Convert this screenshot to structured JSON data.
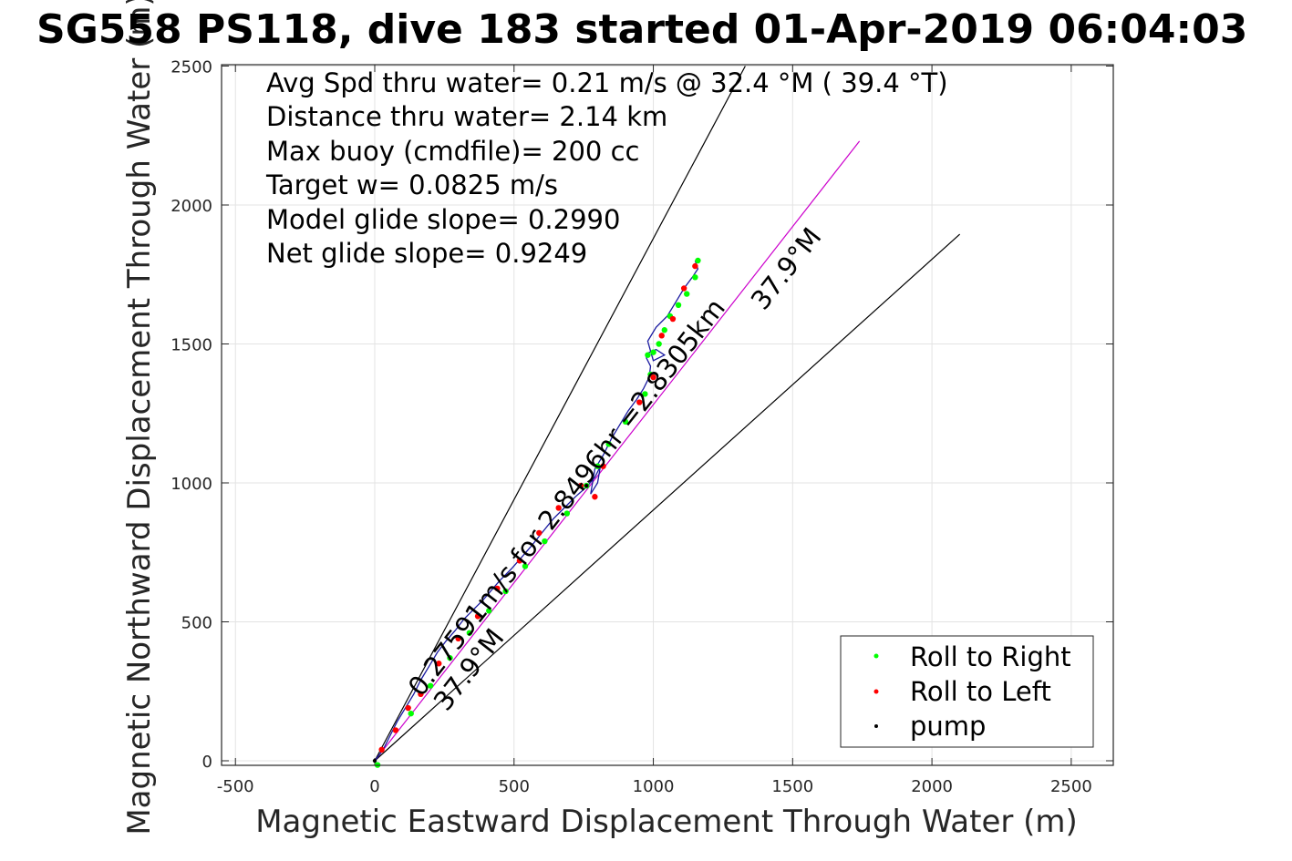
{
  "chart_data": {
    "type": "line",
    "title": "SG558 PS118, dive 183 started 01-Apr-2019 06:04:03",
    "xlabel": "Magnetic Eastward Displacement Through Water (m)",
    "ylabel": "Magnetic Northward Displacement Through Water (m)",
    "xlim": [
      -550,
      2650
    ],
    "ylim": [
      -20,
      2500
    ],
    "xticks": [
      -500,
      0,
      500,
      1000,
      1500,
      2000,
      2500
    ],
    "yticks": [
      0,
      500,
      1000,
      1500,
      2000,
      2500
    ],
    "grid": true,
    "stats_text": [
      "Avg Spd thru water=  0.21 m/s @  32.4 °M ( 39.4 °T)",
      "Distance thru water=  2.14 km",
      "Max buoy (cmdfile)= 200 cc",
      "Target w= 0.0825 m/s",
      "Model glide slope= 0.2990",
      "Net glide slope= 0.9249"
    ],
    "annotations": [
      "0.27591m/s for 2.8496hr =2.8305km",
      "37.9°M",
      "37.9°M"
    ],
    "legend_position": "bottom-right",
    "legend": [
      {
        "label": "Roll to Right",
        "color": "#00ff00"
      },
      {
        "label": "Roll to Left",
        "color": "#ff0000"
      },
      {
        "label": "pump",
        "color": "#000000"
      }
    ],
    "reference_lines": [
      {
        "color": "#000000",
        "x": [
          0,
          1330
        ],
        "y": [
          0,
          2500
        ]
      },
      {
        "color": "#000000",
        "x": [
          0,
          2100
        ],
        "y": [
          0,
          1895
        ]
      },
      {
        "color": "#cc00cc",
        "x": [
          0,
          1740
        ],
        "y": [
          0,
          2230
        ]
      }
    ],
    "series": [
      {
        "color": "#1a1aa0",
        "x": [
          0,
          30,
          55,
          80,
          110,
          140,
          165,
          195,
          225,
          255,
          290,
          320,
          355,
          390,
          420,
          450,
          490,
          525,
          560,
          600,
          640,
          680,
          720,
          760,
          790,
          810,
          800,
          775,
          790,
          820,
          850,
          880,
          910,
          940,
          965,
          985,
          990,
          975,
          985,
          1010,
          1040,
          1000,
          980,
          1010,
          1050,
          1080,
          1110,
          1140,
          1160,
          1150
        ],
        "y": [
          0,
          40,
          90,
          140,
          190,
          240,
          290,
          340,
          390,
          430,
          470,
          510,
          545,
          580,
          615,
          650,
          690,
          730,
          770,
          820,
          870,
          910,
          950,
          985,
          1020,
          1060,
          1000,
          960,
          1050,
          1100,
          1160,
          1210,
          1260,
          1300,
          1340,
          1380,
          1420,
          1450,
          1470,
          1480,
          1460,
          1440,
          1510,
          1560,
          1600,
          1650,
          1700,
          1740,
          1770,
          1800
        ]
      }
    ],
    "markers": {
      "roll_right": {
        "color": "#00ff00",
        "x": [
          10,
          130,
          200,
          270,
          340,
          410,
          470,
          540,
          610,
          690,
          760,
          800,
          840,
          900,
          970,
          990,
          980,
          1000,
          1020,
          1040,
          1060,
          1090,
          1120,
          1150,
          1160
        ],
        "y": [
          -15,
          170,
          270,
          370,
          460,
          540,
          610,
          700,
          790,
          890,
          990,
          1060,
          1140,
          1220,
          1320,
          1390,
          1460,
          1470,
          1500,
          1550,
          1600,
          1640,
          1680,
          1740,
          1800
        ]
      },
      "roll_left": {
        "color": "#ff0000",
        "x": [
          25,
          75,
          120,
          165,
          230,
          300,
          370,
          440,
          520,
          590,
          660,
          740,
          790,
          820,
          950,
          1000,
          1030,
          1070,
          1110,
          1150
        ],
        "y": [
          40,
          110,
          190,
          240,
          350,
          440,
          520,
          620,
          720,
          820,
          910,
          990,
          950,
          1060,
          1290,
          1380,
          1530,
          1590,
          1700,
          1780
        ]
      },
      "pump": {
        "color": "#000000",
        "x": [
          0,
          760
        ],
        "y": [
          0,
          990
        ]
      }
    }
  }
}
